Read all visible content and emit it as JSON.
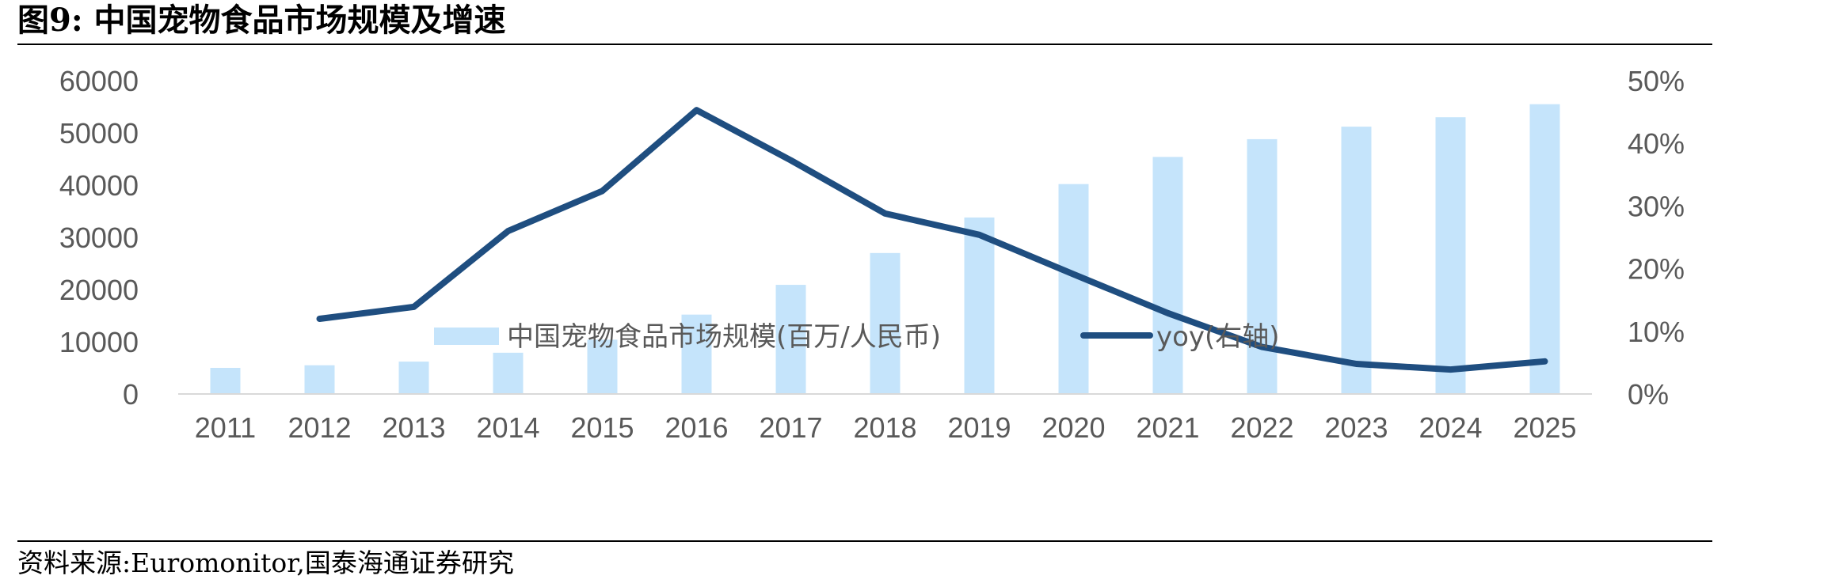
{
  "header": {
    "title": "图9:  中国宠物食品市场规模及增速"
  },
  "footer": {
    "source": "资料来源:Euromonitor,国泰海通证券研究"
  },
  "chart_data": {
    "type": "bar",
    "categories": [
      "2011",
      "2012",
      "2013",
      "2014",
      "2015",
      "2016",
      "2017",
      "2018",
      "2019",
      "2020",
      "2021",
      "2022",
      "2023",
      "2024",
      "2025"
    ],
    "series": [
      {
        "name": "中国宠物食品市场规模(百万/人民币)",
        "type": "bar",
        "axis": "left",
        "color": "#c5e4fb",
        "values": [
          5000,
          5500,
          6200,
          7900,
          10400,
          15200,
          20900,
          27000,
          33800,
          40200,
          45400,
          48800,
          51200,
          53000,
          55500
        ]
      },
      {
        "name": "yoy(右轴)",
        "type": "line",
        "axis": "right",
        "color": "#1f4e80",
        "values": [
          null,
          12.0,
          13.9,
          26.0,
          32.4,
          45.3,
          37.3,
          28.8,
          25.4,
          19.1,
          12.9,
          7.5,
          4.8,
          3.9,
          5.2
        ]
      }
    ],
    "y_left": {
      "min": 0,
      "max": 60000,
      "ticks": [
        "0",
        "10000",
        "20000",
        "30000",
        "40000",
        "50000",
        "60000"
      ]
    },
    "y_right": {
      "min": 0,
      "max": 50,
      "ticks": [
        "0%",
        "10%",
        "20%",
        "30%",
        "40%",
        "50%"
      ]
    },
    "grid": false,
    "legend_position": "bottom"
  }
}
